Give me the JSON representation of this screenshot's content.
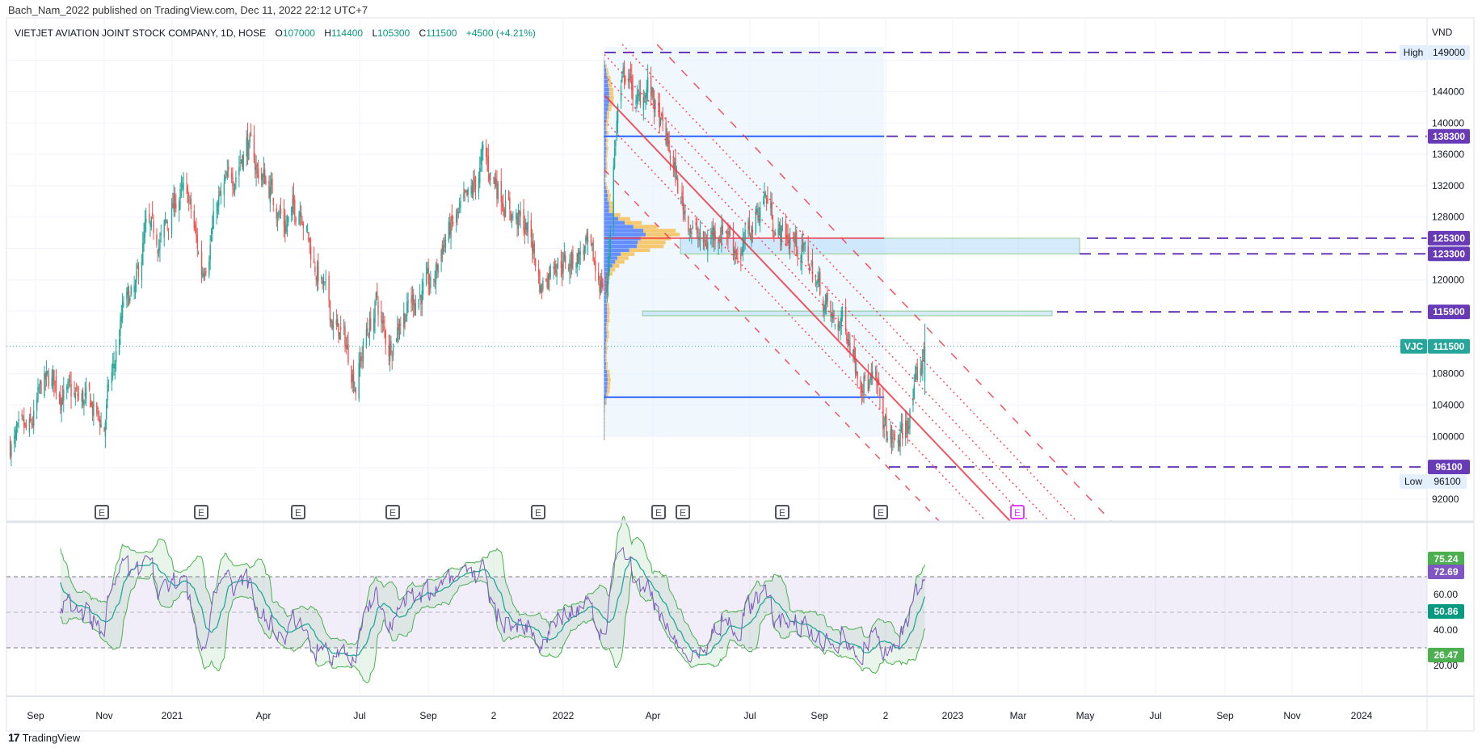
{
  "header": {
    "published": "Bach_Nam_2022 published on TradingView.com, Dec 11, 2022 22:12 UTC+7"
  },
  "legend": {
    "symbol": "VIETJET AVIATION JOINT STOCK COMPANY, 1D, HOSE",
    "o_label": "O",
    "o": "107000",
    "h_label": "H",
    "h": "114400",
    "l_label": "L",
    "l": "105300",
    "c_label": "C",
    "c": "111500",
    "change": "+4500 (+4.21%)"
  },
  "price_axis": {
    "currency": "VND",
    "ticks": [
      "144000",
      "140000",
      "136000",
      "132000",
      "128000",
      "120000",
      "108000",
      "104000",
      "100000",
      "92000"
    ],
    "tick_values": [
      144000,
      140000,
      136000,
      132000,
      128000,
      120000,
      108000,
      104000,
      100000,
      92000
    ],
    "high_label": "High",
    "high_value": "149000",
    "low_label": "Low",
    "low_value": "96100",
    "levels": [
      {
        "text": "138300",
        "value": 138300
      },
      {
        "text": "125300",
        "value": 125300
      },
      {
        "text": "123300",
        "value": 123300
      },
      {
        "text": "115900",
        "value": 115900
      },
      {
        "text": "96100",
        "value": 96100
      }
    ],
    "symbol_tag": "VJC",
    "last_price": "111500"
  },
  "rsi_axis": {
    "ticks": [
      "60.00",
      "40.00",
      "20.00"
    ],
    "bb_upper": "75.24",
    "rsi": "72.69",
    "rsi_ma": "50.86",
    "bb_lower": "26.47"
  },
  "time_axis": [
    "Sep",
    "Nov",
    "2021",
    "Apr",
    "Jul",
    "Sep",
    "2",
    "2022",
    "Apr",
    "Jul",
    "Sep",
    "2",
    "2023",
    "Mar",
    "May",
    "Jul",
    "Sep",
    "Nov",
    "2024"
  ],
  "earnings_marker": "E",
  "footer": {
    "brand": "TradingView"
  },
  "colors": {
    "up": "#26a69a",
    "down": "#ef5350",
    "level": "#673ab7",
    "channel": "#f23645",
    "rsi": "#7e57c2",
    "rsi_ma": "#26a69a",
    "bb": "#4caf50"
  },
  "chart_data": {
    "type": "candlestick",
    "symbol": "VJC",
    "approx_closes": [
      [
        "2020-08-06",
        99000
      ],
      [
        "2020-08-25",
        100500
      ],
      [
        "2020-09-05",
        106500
      ],
      [
        "2020-09-15",
        107000
      ],
      [
        "2020-10-01",
        105000
      ],
      [
        "2020-10-20",
        104000
      ],
      [
        "2020-11-02",
        101000
      ],
      [
        "2020-11-06",
        106000
      ],
      [
        "2020-11-12",
        109500
      ],
      [
        "2020-11-20",
        116500
      ],
      [
        "2020-12-01",
        118000
      ],
      [
        "2020-12-10",
        126000
      ],
      [
        "2020-12-25",
        125000
      ],
      [
        "2021-01-10",
        131000
      ],
      [
        "2021-01-20",
        130000
      ],
      [
        "2021-02-01",
        121000
      ],
      [
        "2021-02-15",
        129000
      ],
      [
        "2021-03-01",
        133000
      ],
      [
        "2021-03-15",
        137500
      ],
      [
        "2021-03-25",
        134000
      ],
      [
        "2021-04-05",
        132000
      ],
      [
        "2021-04-20",
        127000
      ],
      [
        "2021-05-05",
        130000
      ],
      [
        "2021-05-15",
        123000
      ],
      [
        "2021-05-25",
        119000
      ],
      [
        "2021-06-05",
        114000
      ],
      [
        "2021-06-15",
        112000
      ],
      [
        "2021-06-25",
        107000
      ],
      [
        "2021-07-05",
        113000
      ],
      [
        "2021-07-15",
        117000
      ],
      [
        "2021-07-25",
        111000
      ],
      [
        "2021-08-05",
        115000
      ],
      [
        "2021-08-20",
        118000
      ],
      [
        "2021-09-05",
        119000
      ],
      [
        "2021-09-15",
        125000
      ],
      [
        "2021-09-25",
        127000
      ],
      [
        "2021-10-10",
        130000
      ],
      [
        "2021-10-22",
        135500
      ],
      [
        "2021-11-05",
        132000
      ],
      [
        "2021-11-20",
        128000
      ],
      [
        "2021-12-05",
        126000
      ],
      [
        "2021-12-15",
        119000
      ],
      [
        "2021-12-28",
        123000
      ],
      [
        "2022-01-10",
        122000
      ],
      [
        "2022-01-25",
        124000
      ],
      [
        "2022-02-08",
        120000
      ],
      [
        "2022-02-15",
        119000
      ],
      [
        "2022-02-20",
        133000
      ],
      [
        "2022-02-25",
        142000
      ],
      [
        "2022-03-05",
        147000
      ],
      [
        "2022-03-15",
        142000
      ],
      [
        "2022-03-25",
        145000
      ],
      [
        "2022-04-05",
        140000
      ],
      [
        "2022-04-15",
        136000
      ],
      [
        "2022-04-25",
        130000
      ],
      [
        "2022-05-05",
        127000
      ],
      [
        "2022-05-15",
        124000
      ],
      [
        "2022-05-25",
        126000
      ],
      [
        "2022-06-05",
        127000
      ],
      [
        "2022-06-20",
        123000
      ],
      [
        "2022-07-01",
        127000
      ],
      [
        "2022-07-12",
        131000
      ],
      [
        "2022-07-25",
        126000
      ],
      [
        "2022-08-05",
        125500
      ],
      [
        "2022-08-20",
        123000
      ],
      [
        "2022-09-01",
        119000
      ],
      [
        "2022-09-15",
        114000
      ],
      [
        "2022-09-25",
        115000
      ],
      [
        "2022-10-05",
        110000
      ],
      [
        "2022-10-15",
        107000
      ],
      [
        "2022-10-25",
        106000
      ],
      [
        "2022-11-01",
        101000
      ],
      [
        "2022-11-10",
        99000
      ],
      [
        "2022-11-18",
        100000
      ],
      [
        "2022-11-25",
        103000
      ],
      [
        "2022-12-02",
        107000
      ],
      [
        "2022-12-09",
        111500
      ]
    ],
    "last_bar": {
      "open": 107000,
      "high": 114400,
      "low": 105300,
      "close": 111500
    },
    "earnings_dates": [
      "2020-10-28",
      "2021-01-28",
      "2021-04-25",
      "2021-07-27",
      "2021-11-01",
      "2022-01-28",
      "2022-02-12",
      "2022-05-06",
      "2022-08-03",
      "2022-11-01"
    ],
    "horizontal_levels": [
      149000,
      138300,
      125300,
      123300,
      115900,
      96100
    ],
    "zones": [
      {
        "from": 123300,
        "to": 125300
      },
      {
        "from": 115400,
        "to": 116000
      }
    ],
    "volume_profile": {
      "from": "2022-02-12",
      "to": "2022-11-01",
      "value_area_high": 138300,
      "value_area_low": 105000
    },
    "ylim": [
      88000,
      151000
    ],
    "rsi": {
      "length": 14,
      "last": 72.69,
      "ma": 50.86,
      "bb_upper": 75.24,
      "bb_lower": 26.47,
      "band": [
        30,
        70
      ],
      "ylim": [
        0,
        90
      ]
    }
  }
}
